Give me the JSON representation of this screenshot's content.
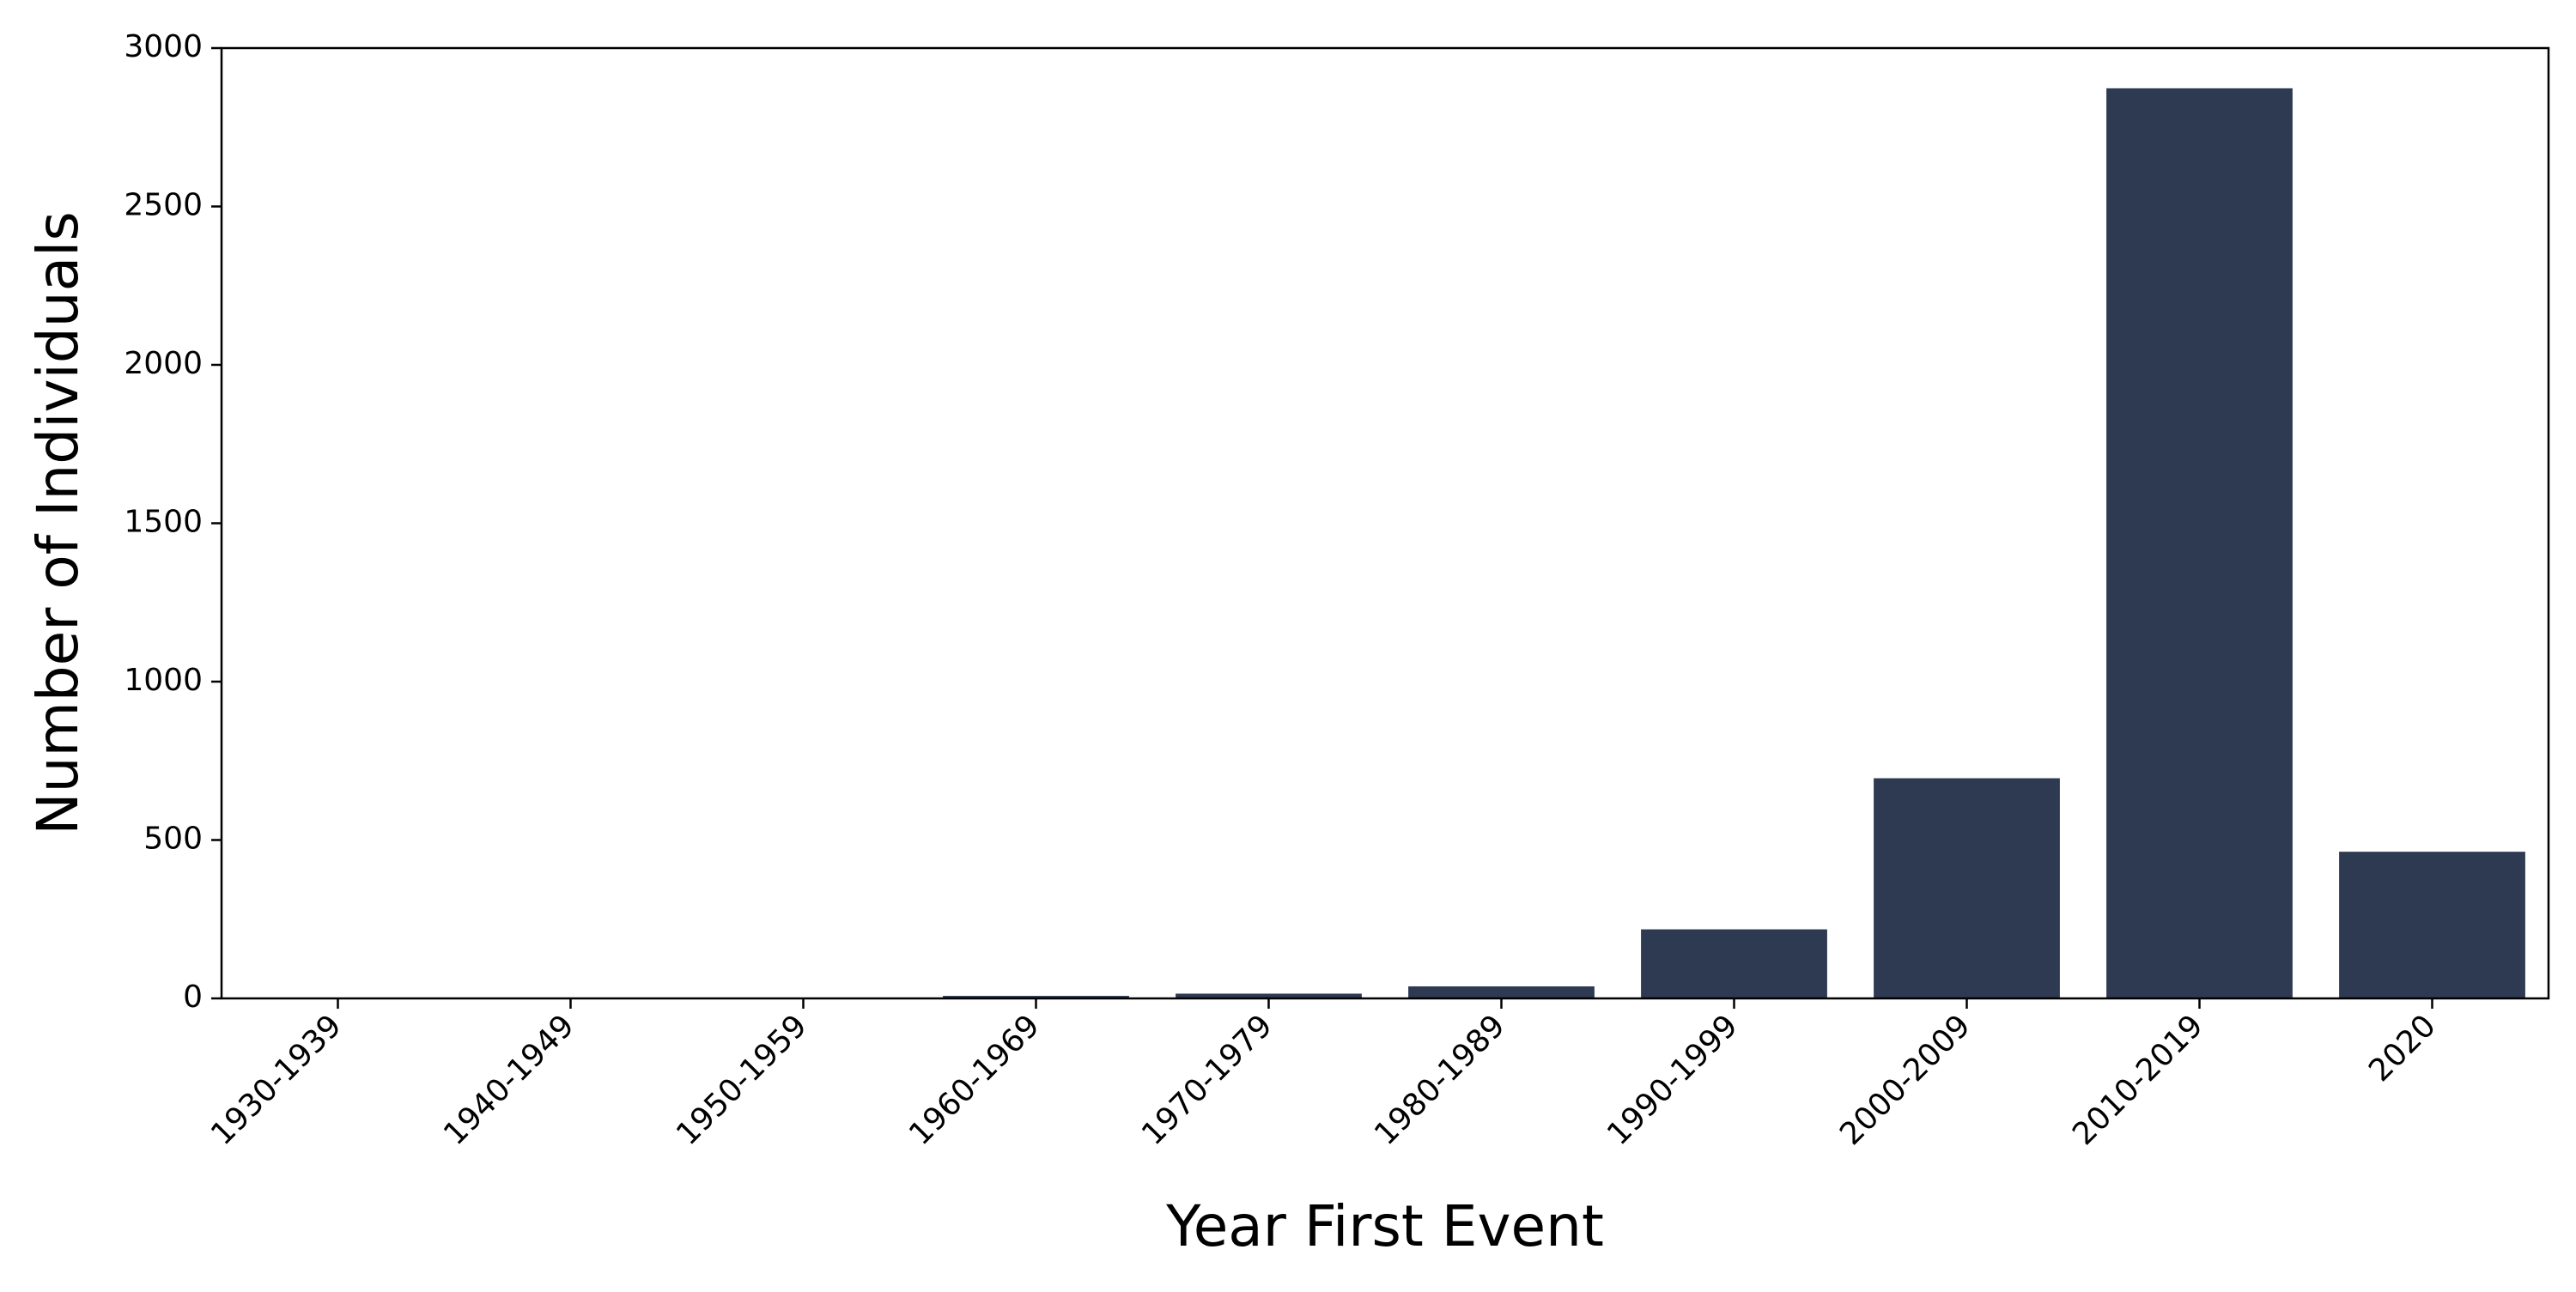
{
  "chart_data": {
    "type": "bar",
    "title": "",
    "xlabel": "Year First Event",
    "ylabel": "Number of Individuals",
    "categories": [
      "1930-1939",
      "1940-1949",
      "1950-1959",
      "1960-1969",
      "1970-1979",
      "1980-1989",
      "1990-1999",
      "2000-2009",
      "2010-2019",
      "2020"
    ],
    "values": [
      1,
      1,
      2,
      8,
      15,
      38,
      218,
      695,
      2873,
      463
    ],
    "ylim": [
      0,
      3000
    ],
    "yticks": [
      0,
      500,
      1000,
      1500,
      2000,
      2500,
      3000
    ],
    "ytick_labels": [
      "0",
      "500",
      "1000",
      "1500",
      "2000",
      "2500",
      "3000"
    ],
    "grid": false,
    "legend": "none",
    "bar_color": "#2e3a52"
  }
}
